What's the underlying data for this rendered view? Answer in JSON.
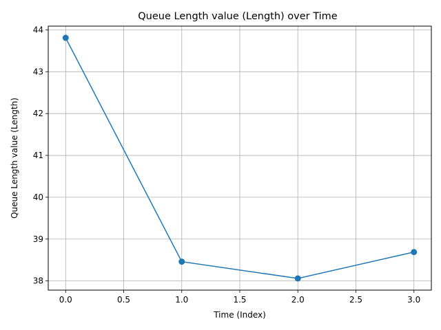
{
  "chart_data": {
    "type": "line",
    "title": "Queue Length value (Length) over Time",
    "xlabel": "Time (Index)",
    "ylabel": "Queue Length value (Length)",
    "x": [
      0,
      1,
      2,
      3
    ],
    "series": [
      {
        "values": [
          43.81,
          38.46,
          38.06,
          38.69
        ],
        "color": "#1f77b4",
        "marker": "circle"
      }
    ],
    "xlim": [
      -0.15,
      3.15
    ],
    "ylim": [
      37.78,
      44.09
    ],
    "xticks": [
      0.0,
      0.5,
      1.0,
      1.5,
      2.0,
      2.5,
      3.0
    ],
    "xtick_labels": [
      "0.0",
      "0.5",
      "1.0",
      "1.5",
      "2.0",
      "2.5",
      "3.0"
    ],
    "yticks": [
      38,
      39,
      40,
      41,
      42,
      43,
      44
    ],
    "ytick_labels": [
      "38",
      "39",
      "40",
      "41",
      "42",
      "43",
      "44"
    ],
    "grid": true,
    "colors": {
      "line": "#1f77b4",
      "grid": "#b0b0b0",
      "axis": "#000000"
    }
  }
}
